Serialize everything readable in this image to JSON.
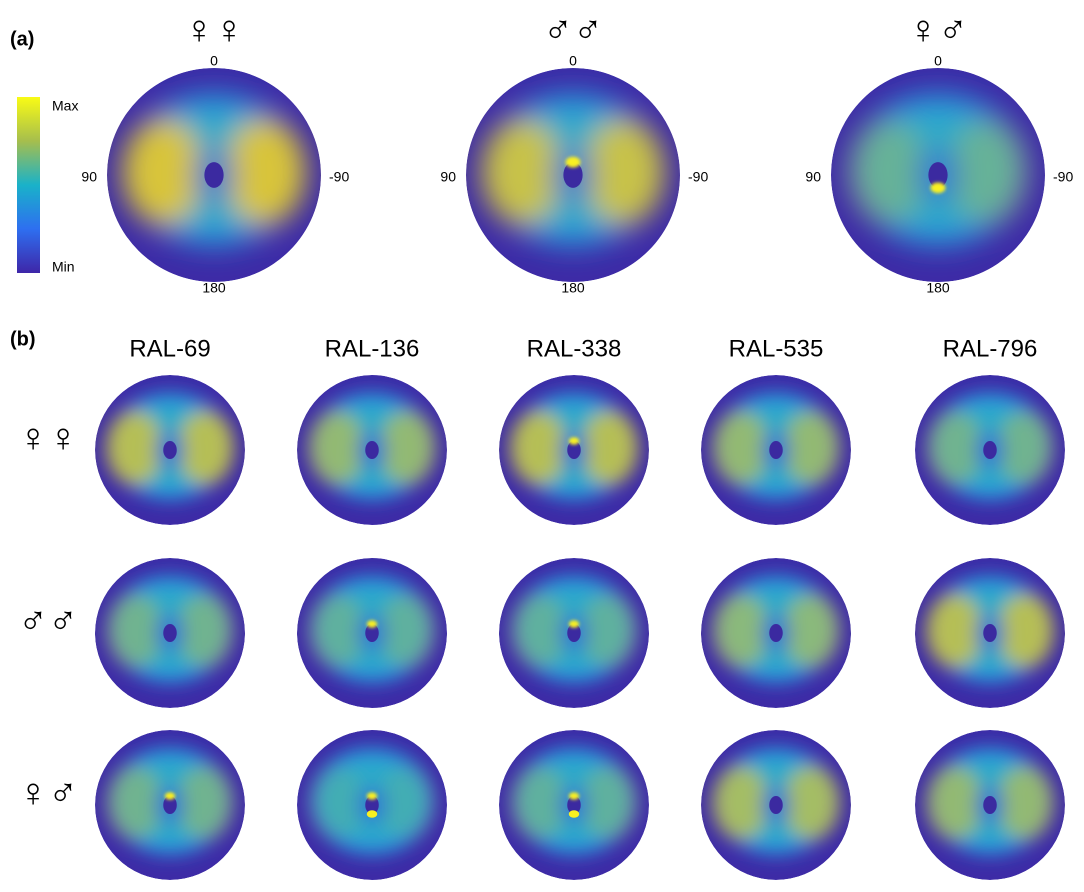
{
  "panel_a": {
    "label": "(a)",
    "colorbar": {
      "max": "Max",
      "min": "Min"
    },
    "plots": [
      {
        "title": "♀♀"
      },
      {
        "title": "♂♂"
      },
      {
        "title": "♀♂"
      }
    ],
    "angle_labels": {
      "top": "0",
      "left": "90",
      "right": "-90",
      "bottom": "180"
    }
  },
  "panel_b": {
    "label": "(b)",
    "columns": [
      "RAL-69",
      "RAL-136",
      "RAL-338",
      "RAL-535",
      "RAL-796"
    ],
    "rows": [
      "♀♀",
      "♂♂",
      "♀♂"
    ]
  }
}
